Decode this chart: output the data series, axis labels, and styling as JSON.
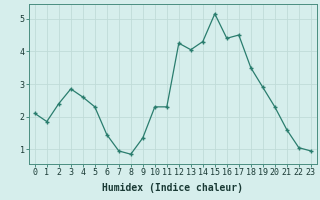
{
  "x": [
    0,
    1,
    2,
    3,
    4,
    5,
    6,
    7,
    8,
    9,
    10,
    11,
    12,
    13,
    14,
    15,
    16,
    17,
    18,
    19,
    20,
    21,
    22,
    23
  ],
  "y": [
    2.1,
    1.85,
    2.4,
    2.85,
    2.6,
    2.3,
    1.45,
    0.95,
    0.85,
    1.35,
    2.3,
    2.3,
    4.25,
    4.05,
    4.3,
    5.15,
    4.4,
    4.5,
    3.5,
    2.9,
    2.3,
    1.6,
    1.05,
    0.95
  ],
  "line_color": "#2a7d6e",
  "marker": "+",
  "marker_size": 3,
  "marker_lw": 1.0,
  "background_color": "#d6eeec",
  "grid_color": "#c0dbd8",
  "xlabel": "Humidex (Indice chaleur)",
  "xlabel_fontsize": 7,
  "tick_fontsize": 6,
  "ylim": [
    0.55,
    5.45
  ],
  "xlim": [
    -0.5,
    23.5
  ],
  "yticks": [
    1,
    2,
    3,
    4,
    5
  ],
  "xticks": [
    0,
    1,
    2,
    3,
    4,
    5,
    6,
    7,
    8,
    9,
    10,
    11,
    12,
    13,
    14,
    15,
    16,
    17,
    18,
    19,
    20,
    21,
    22,
    23
  ],
  "spine_color": "#4a8e80",
  "line_width": 0.9
}
